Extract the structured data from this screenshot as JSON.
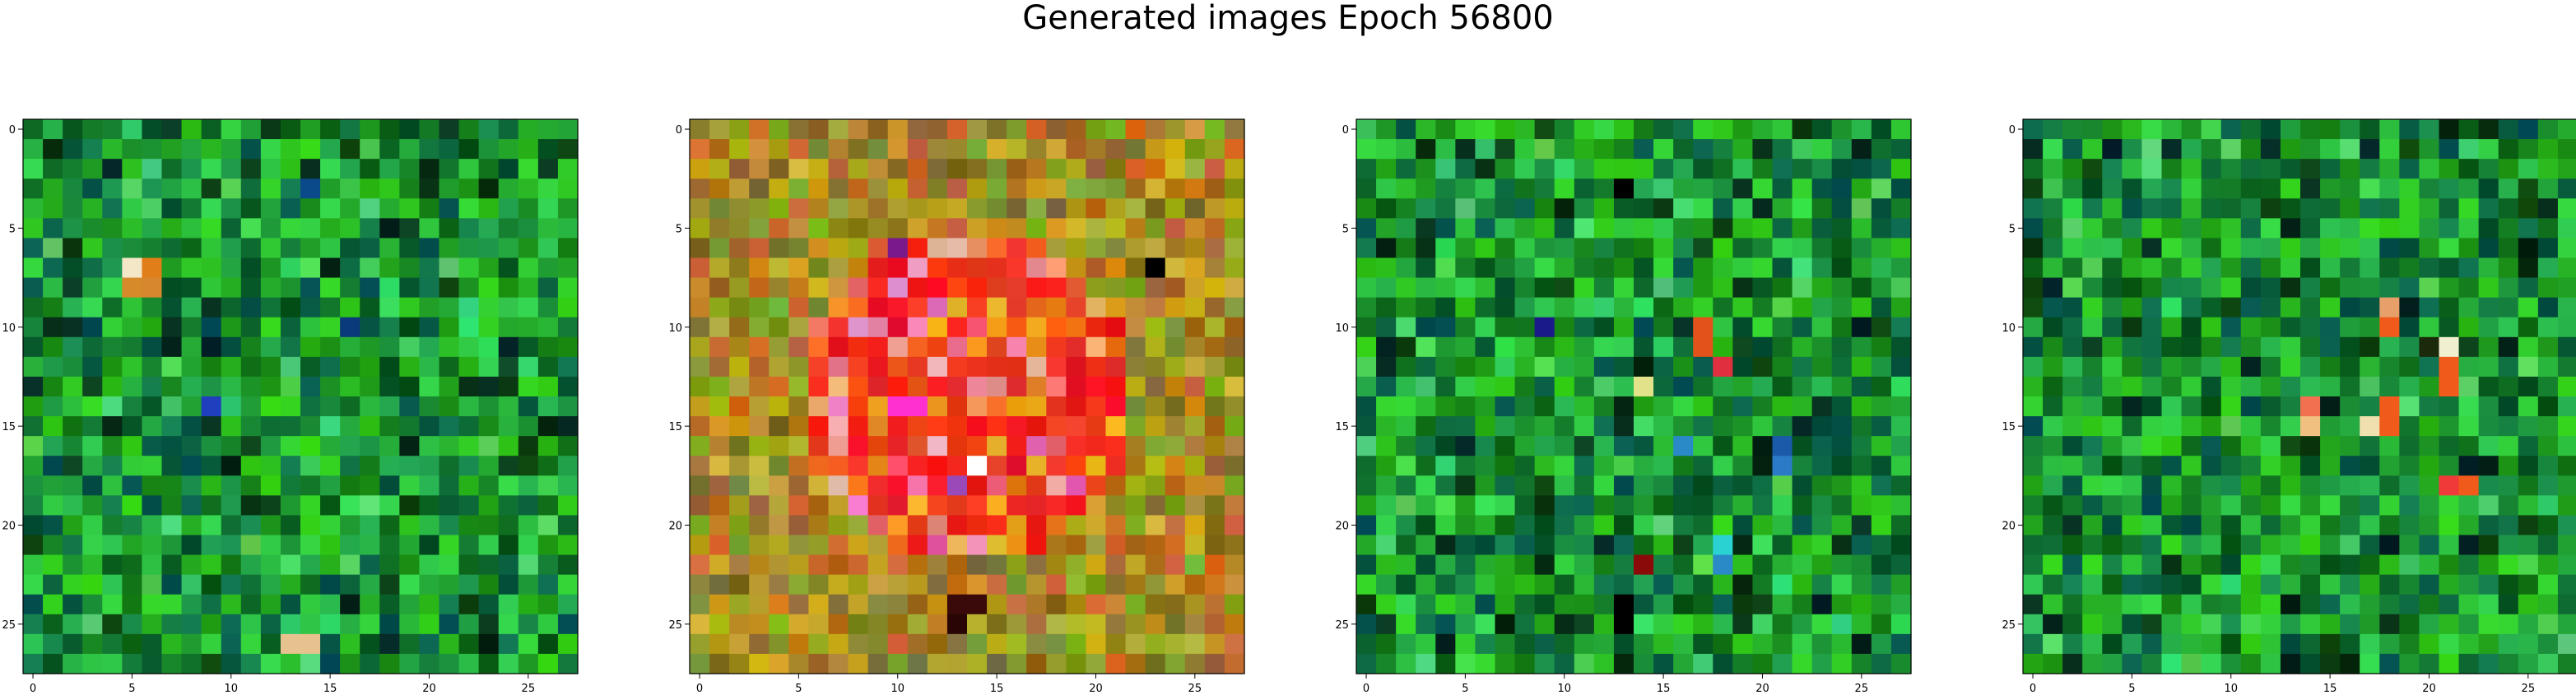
{
  "figure": {
    "title": "Generated images Epoch 56800"
  },
  "chart_data": [
    {
      "type": "heatmap",
      "grid": [
        28,
        28
      ],
      "palette": "green",
      "seed": 11,
      "xlim": [
        -0.5,
        27.5
      ],
      "ylim": [
        27.5,
        -0.5
      ],
      "xticks": [
        0,
        5,
        10,
        15,
        20,
        25
      ],
      "yticks": [
        0,
        5,
        10,
        15,
        20,
        25
      ],
      "xtick_labels": [
        "0",
        "5",
        "10",
        "15",
        "20",
        "25"
      ],
      "ytick_labels": [
        "0",
        "5",
        "10",
        "15",
        "20",
        "25"
      ],
      "highlights": [
        {
          "row": 7,
          "col": 5,
          "color": "#f3e7c8"
        },
        {
          "row": 7,
          "col": 6,
          "color": "#e07f1a"
        },
        {
          "row": 8,
          "col": 5,
          "color": "#d78a2a"
        },
        {
          "row": 8,
          "col": 6,
          "color": "#d7882c"
        },
        {
          "row": 14,
          "col": 9,
          "color": "#1f3fbf"
        },
        {
          "row": 26,
          "col": 13,
          "color": "#e6c38e"
        },
        {
          "row": 26,
          "col": 14,
          "color": "#e6c38e"
        },
        {
          "row": 3,
          "col": 14,
          "color": "#0a4a8a"
        },
        {
          "row": 10,
          "col": 16,
          "color": "#0a3a7a"
        }
      ]
    },
    {
      "type": "heatmap",
      "grid": [
        28,
        28
      ],
      "palette": "red",
      "seed": 23,
      "xlim": [
        -0.5,
        27.5
      ],
      "ylim": [
        27.5,
        -0.5
      ],
      "xticks": [
        0,
        5,
        10,
        15,
        20,
        25
      ],
      "yticks": [
        0,
        5,
        10,
        15,
        20,
        25
      ],
      "xtick_labels": [
        "0",
        "5",
        "10",
        "15",
        "20",
        "25"
      ],
      "ytick_labels": [
        "0",
        "5",
        "10",
        "15",
        "20",
        "25"
      ],
      "highlights": [
        {
          "row": 14,
          "col": 10,
          "color": "#ff2fd0"
        },
        {
          "row": 14,
          "col": 11,
          "color": "#ff2fd0"
        },
        {
          "row": 17,
          "col": 14,
          "color": "#ffffff"
        },
        {
          "row": 6,
          "col": 10,
          "color": "#7a1a8a"
        },
        {
          "row": 24,
          "col": 13,
          "color": "#3a0a0a"
        },
        {
          "row": 24,
          "col": 14,
          "color": "#3a0a0a"
        },
        {
          "row": 25,
          "col": 13,
          "color": "#2a0505"
        },
        {
          "row": 7,
          "col": 23,
          "color": "#000000"
        },
        {
          "row": 18,
          "col": 13,
          "color": "#9a4ab8"
        }
      ]
    },
    {
      "type": "heatmap",
      "grid": [
        28,
        28
      ],
      "palette": "green",
      "seed": 37,
      "xlim": [
        -0.5,
        27.5
      ],
      "ylim": [
        27.5,
        -0.5
      ],
      "xticks": [
        0,
        5,
        10,
        15,
        20,
        25
      ],
      "yticks": [
        0,
        5,
        10,
        15,
        20,
        25
      ],
      "xtick_labels": [
        "0",
        "5",
        "10",
        "15",
        "20",
        "25"
      ],
      "ytick_labels": [
        "0",
        "5",
        "10",
        "15",
        "20",
        "25"
      ],
      "highlights": [
        {
          "row": 10,
          "col": 17,
          "color": "#e2521a"
        },
        {
          "row": 11,
          "col": 17,
          "color": "#e2521a"
        },
        {
          "row": 12,
          "col": 18,
          "color": "#e03040"
        },
        {
          "row": 13,
          "col": 14,
          "color": "#e2e28a"
        },
        {
          "row": 16,
          "col": 16,
          "color": "#2a8ac8"
        },
        {
          "row": 16,
          "col": 21,
          "color": "#1a5aa8"
        },
        {
          "row": 17,
          "col": 21,
          "color": "#2a7ac8"
        },
        {
          "row": 21,
          "col": 18,
          "color": "#2ad2d2"
        },
        {
          "row": 22,
          "col": 18,
          "color": "#2a8ac8"
        },
        {
          "row": 22,
          "col": 14,
          "color": "#8a0a0a"
        },
        {
          "row": 10,
          "col": 9,
          "color": "#1a1a8a"
        },
        {
          "row": 24,
          "col": 13,
          "color": "#000000"
        },
        {
          "row": 25,
          "col": 13,
          "color": "#000000"
        },
        {
          "row": 3,
          "col": 13,
          "color": "#000000"
        }
      ]
    },
    {
      "type": "heatmap",
      "grid": [
        28,
        28
      ],
      "palette": "green",
      "seed": 51,
      "xlim": [
        -0.5,
        27.5
      ],
      "ylim": [
        27.5,
        -0.5
      ],
      "xticks": [
        0,
        5,
        10,
        15,
        20,
        25
      ],
      "yticks": [
        0,
        5,
        10,
        15,
        20,
        25
      ],
      "xtick_labels": [
        "0",
        "5",
        "10",
        "15",
        "20",
        "25"
      ],
      "ytick_labels": [
        "0",
        "5",
        "10",
        "15",
        "20",
        "25"
      ],
      "highlights": [
        {
          "row": 9,
          "col": 18,
          "color": "#e8a06a"
        },
        {
          "row": 10,
          "col": 18,
          "color": "#f05a1a"
        },
        {
          "row": 11,
          "col": 21,
          "color": "#f0f0d0"
        },
        {
          "row": 12,
          "col": 21,
          "color": "#f05a1a"
        },
        {
          "row": 13,
          "col": 21,
          "color": "#f05a1a"
        },
        {
          "row": 14,
          "col": 14,
          "color": "#f07050"
        },
        {
          "row": 14,
          "col": 18,
          "color": "#f05a1a"
        },
        {
          "row": 15,
          "col": 14,
          "color": "#f0c080"
        },
        {
          "row": 15,
          "col": 17,
          "color": "#f0e0b0"
        },
        {
          "row": 15,
          "col": 18,
          "color": "#f05a1a"
        },
        {
          "row": 18,
          "col": 21,
          "color": "#f03a3a"
        },
        {
          "row": 18,
          "col": 22,
          "color": "#f05a1a"
        },
        {
          "row": 11,
          "col": 20,
          "color": "#1a2a0a"
        }
      ]
    }
  ]
}
